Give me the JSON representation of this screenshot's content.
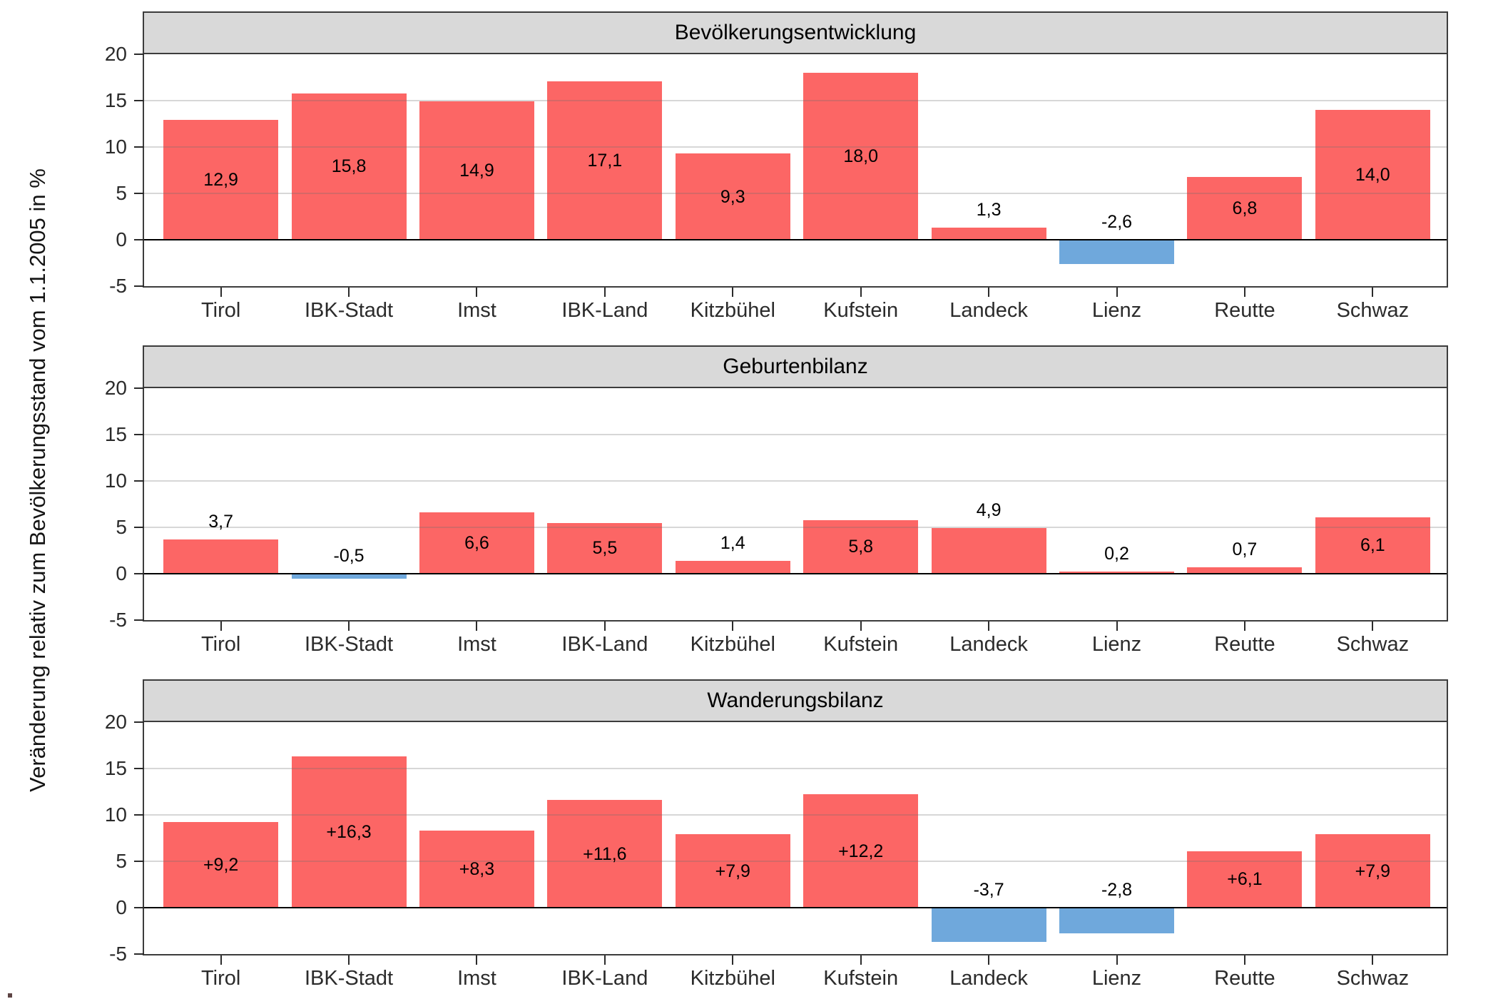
{
  "figure": {
    "ylabel": "Veränderung relativ zum Bevölkerungsstand vom 1.1.2005 in %"
  },
  "style": {
    "bar_positive": "#fc6665",
    "bar_negative": "#6fa8dc",
    "header_bg": "#d9d9d9",
    "panel_border": "#3c3c3c"
  },
  "chart_data": [
    {
      "type": "bar",
      "title": "Bevölkerungsentwicklung",
      "categories": [
        "Tirol",
        "IBK-Stadt",
        "Imst",
        "IBK-Land",
        "Kitzbühel",
        "Kufstein",
        "Landeck",
        "Lienz",
        "Reutte",
        "Schwaz"
      ],
      "values": [
        12.9,
        15.8,
        14.9,
        17.1,
        9.3,
        18.0,
        1.3,
        -2.6,
        6.8,
        14.0
      ],
      "value_labels": [
        "12,9",
        "15,8",
        "14,9",
        "17,1",
        "9,3",
        "18,0",
        "1,3",
        "-2,6",
        "6,8",
        "14,0"
      ],
      "ylim": [
        -5,
        20
      ],
      "yticks": [
        20,
        15,
        10,
        5,
        0,
        -5
      ],
      "yticks_display": [
        "20",
        "15",
        "10",
        "5",
        "0",
        "-5"
      ],
      "grid": true,
      "legend": "none"
    },
    {
      "type": "bar",
      "title": "Geburtenbilanz",
      "categories": [
        "Tirol",
        "IBK-Stadt",
        "Imst",
        "IBK-Land",
        "Kitzbühel",
        "Kufstein",
        "Landeck",
        "Lienz",
        "Reutte",
        "Schwaz"
      ],
      "values": [
        3.7,
        -0.5,
        6.6,
        5.5,
        1.4,
        5.8,
        4.9,
        0.2,
        0.7,
        6.1
      ],
      "value_labels": [
        "3,7",
        "-0,5",
        "6,6",
        "5,5",
        "1,4",
        "5,8",
        "4,9",
        "0,2",
        "0,7",
        "6,1"
      ],
      "ylim": [
        -5,
        20
      ],
      "yticks": [
        20,
        15,
        10,
        5,
        0,
        -5
      ],
      "yticks_display": [
        "20",
        "15",
        "10",
        "5",
        "0",
        "-5"
      ],
      "grid": true,
      "legend": "none"
    },
    {
      "type": "bar",
      "title": "Wanderungsbilanz",
      "categories": [
        "Tirol",
        "IBK-Stadt",
        "Imst",
        "IBK-Land",
        "Kitzbühel",
        "Kufstein",
        "Landeck",
        "Lienz",
        "Reutte",
        "Schwaz"
      ],
      "values": [
        9.2,
        16.3,
        8.3,
        11.6,
        7.9,
        12.2,
        -3.7,
        -2.8,
        6.1,
        7.9
      ],
      "value_labels": [
        "+9,2",
        "+16,3",
        "+8,3",
        "+11,6",
        "+7,9",
        "+12,2",
        "-3,7",
        "-2,8",
        "+6,1",
        "+7,9"
      ],
      "ylim": [
        -5,
        20
      ],
      "yticks": [
        20,
        15,
        10,
        5,
        0,
        -5
      ],
      "yticks_display": [
        "20",
        "15",
        "10",
        "5",
        "0",
        "-5"
      ],
      "grid": true,
      "legend": "none"
    }
  ]
}
